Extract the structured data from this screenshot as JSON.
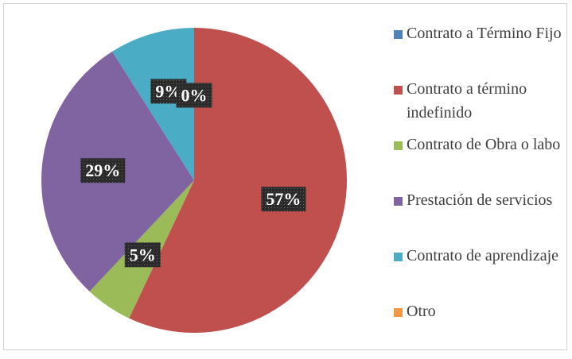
{
  "chart_data": {
    "type": "pie",
    "categories": [
      "Contrato a Término Fijo",
      "Contrato a término indefinido",
      "Contrato de Obra o labo",
      "Prestación de servicios",
      "Contrato de aprendizaje",
      "Otro"
    ],
    "values": [
      0,
      57,
      5,
      29,
      9,
      0
    ],
    "value_labels": [
      "0%",
      "57%",
      "5%",
      "29%",
      "9%",
      "0%"
    ],
    "colors": [
      "#4f81bd",
      "#c0504d",
      "#9bbb59",
      "#8064a2",
      "#4bacc6",
      "#f79646"
    ],
    "legend": "right"
  }
}
